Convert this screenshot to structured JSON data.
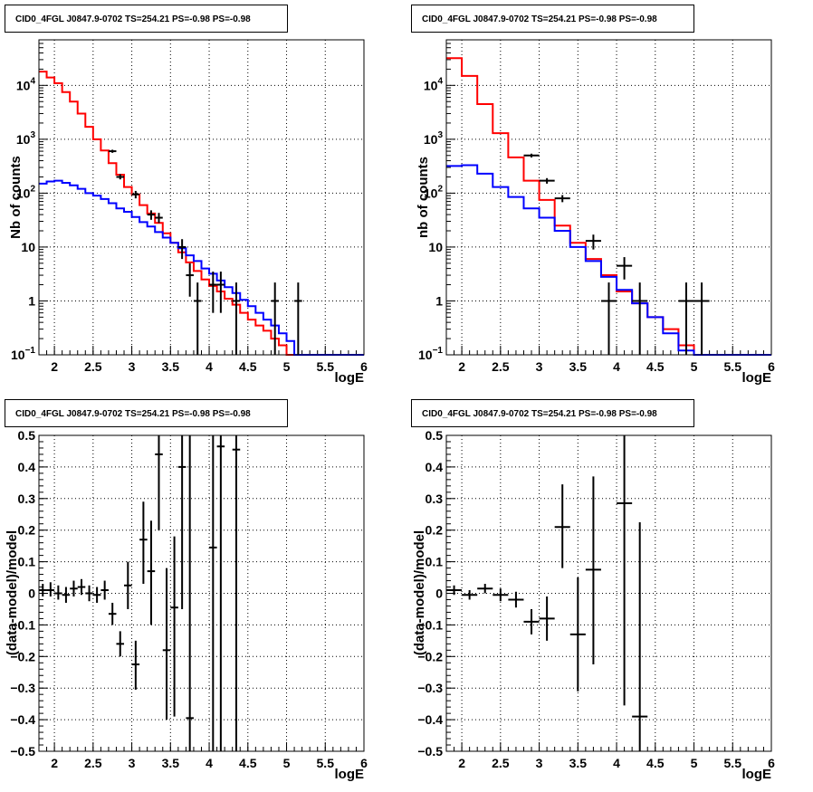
{
  "chart_data": [
    {
      "type": "line",
      "title": "CID0_4FGL J0847.9-0702 TS=254.21 PS=-0.98 PS=-0.98",
      "xlabel": "logE",
      "ylabel": "Nb of counts",
      "yscale": "log",
      "xlim": [
        1.8,
        6.0
      ],
      "ylim": [
        0.1,
        70000
      ],
      "grid": true,
      "xticks": [
        "2",
        "2.5",
        "3",
        "3.5",
        "4",
        "4.5",
        "5",
        "5.5",
        "6"
      ],
      "yticks": [
        {
          "value": 0.1,
          "label": "10",
          "sup": "−1"
        },
        {
          "value": 1,
          "label": "1",
          "sup": ""
        },
        {
          "value": 10,
          "label": "10",
          "sup": ""
        },
        {
          "value": 100,
          "label": "10",
          "sup": "2"
        },
        {
          "value": 1000,
          "label": "10",
          "sup": "3"
        },
        {
          "value": 10000,
          "label": "10",
          "sup": "4"
        }
      ],
      "bin_edges": [
        1.8,
        1.9,
        2.0,
        2.1,
        2.2,
        2.3,
        2.4,
        2.5,
        2.6,
        2.7,
        2.8,
        2.9,
        3.0,
        3.1,
        3.2,
        3.3,
        3.4,
        3.5,
        3.6,
        3.7,
        3.8,
        3.9,
        4.0,
        4.1,
        4.2,
        4.3,
        4.4,
        4.5,
        4.6,
        4.7,
        4.8,
        4.9,
        5.0,
        5.1,
        5.2,
        5.3,
        5.4,
        5.5,
        5.6,
        5.7,
        5.8,
        5.9,
        6.0
      ],
      "series": [
        {
          "color": "#ff0000",
          "style": "step",
          "values": [
            18000,
            14000,
            11000,
            7500,
            5000,
            3000,
            1700,
            1000,
            620,
            360,
            220,
            130,
            95,
            60,
            42,
            28,
            18,
            12,
            8,
            5.2,
            3.6,
            2.5,
            1.9,
            1.5,
            1.1,
            0.85,
            0.6,
            0.45,
            0.35,
            0.28,
            0.2,
            0.15,
            0.1,
            0.1,
            0.1,
            0.1,
            0.1,
            0.1,
            0.1,
            0.1,
            0.1,
            0.1
          ]
        },
        {
          "color": "#0000ff",
          "style": "step",
          "values": [
            150,
            165,
            170,
            155,
            140,
            120,
            100,
            90,
            78,
            65,
            52,
            45,
            36,
            29,
            24,
            19,
            15,
            12,
            9.5,
            7,
            5.5,
            4,
            3.2,
            2.4,
            1.8,
            1.4,
            1.05,
            0.8,
            0.6,
            0.45,
            0.35,
            0.25,
            0.18,
            0.1,
            0.1,
            0.1,
            0.1,
            0.1,
            0.1,
            0.1,
            0.1,
            0.1
          ]
        }
      ],
      "data_points": [
        {
          "x": 2.75,
          "y": 600,
          "ylo": 560,
          "yhi": 640
        },
        {
          "x": 2.85,
          "y": 200,
          "ylo": 180,
          "yhi": 225
        },
        {
          "x": 3.05,
          "y": 95,
          "ylo": 80,
          "yhi": 110
        },
        {
          "x": 3.25,
          "y": 40,
          "ylo": 32,
          "yhi": 48
        },
        {
          "x": 3.35,
          "y": 35,
          "ylo": 28,
          "yhi": 43
        },
        {
          "x": 3.65,
          "y": 10,
          "ylo": 6,
          "yhi": 14
        },
        {
          "x": 3.75,
          "y": 3,
          "ylo": 1.2,
          "yhi": 5
        },
        {
          "x": 3.85,
          "y": 1,
          "ylo": 0.1,
          "yhi": 2.2
        },
        {
          "x": 4.05,
          "y": 2,
          "ylo": 0.6,
          "yhi": 3.5
        },
        {
          "x": 4.15,
          "y": 2,
          "ylo": 0.6,
          "yhi": 3.5
        },
        {
          "x": 4.35,
          "y": 1,
          "ylo": 0.1,
          "yhi": 2.2
        },
        {
          "x": 4.85,
          "y": 1,
          "ylo": 0.1,
          "yhi": 2.2
        },
        {
          "x": 5.15,
          "y": 1,
          "ylo": 0.1,
          "yhi": 2.2
        }
      ]
    },
    {
      "type": "line",
      "title": "CID0_4FGL J0847.9-0702 TS=254.21 PS=-0.98 PS=-0.98",
      "xlabel": "logE",
      "ylabel": "nb of counts",
      "yscale": "log",
      "xlim": [
        1.8,
        6.0
      ],
      "ylim": [
        0.1,
        70000
      ],
      "grid": true,
      "xticks": [
        "2",
        "2.5",
        "3",
        "3.5",
        "4",
        "4.5",
        "5",
        "5.5",
        "6"
      ],
      "yticks": [
        {
          "value": 0.1,
          "label": "10",
          "sup": "−1"
        },
        {
          "value": 1,
          "label": "1",
          "sup": ""
        },
        {
          "value": 10,
          "label": "10",
          "sup": ""
        },
        {
          "value": 100,
          "label": "10",
          "sup": "2"
        },
        {
          "value": 1000,
          "label": "10",
          "sup": "3"
        },
        {
          "value": 10000,
          "label": "10",
          "sup": "4"
        }
      ],
      "bin_edges": [
        1.8,
        2.0,
        2.2,
        2.4,
        2.6,
        2.8,
        3.0,
        3.2,
        3.4,
        3.6,
        3.8,
        4.0,
        4.2,
        4.4,
        4.6,
        4.8,
        5.0,
        5.2,
        5.4,
        5.6,
        5.8,
        6.0
      ],
      "series": [
        {
          "color": "#ff0000",
          "style": "step",
          "values": [
            32000,
            15000,
            4500,
            1300,
            460,
            170,
            75,
            25,
            12,
            6,
            3,
            1.5,
            0.9,
            0.5,
            0.3,
            0.15,
            0.1,
            0.1,
            0.1,
            0.1,
            0.1
          ]
        },
        {
          "color": "#0000ff",
          "style": "step",
          "values": [
            320,
            330,
            230,
            130,
            85,
            52,
            35,
            20,
            10,
            5.5,
            2.8,
            1.6,
            0.9,
            0.5,
            0.25,
            0.12,
            0.1,
            0.1,
            0.1,
            0.1,
            0.1
          ]
        }
      ],
      "data_points": [
        {
          "x": 2.9,
          "y": 500,
          "ylo": 460,
          "yhi": 540
        },
        {
          "x": 3.1,
          "y": 170,
          "ylo": 150,
          "yhi": 190
        },
        {
          "x": 3.3,
          "y": 80,
          "ylo": 68,
          "yhi": 92
        },
        {
          "x": 3.7,
          "y": 13,
          "ylo": 9,
          "yhi": 17
        },
        {
          "x": 3.9,
          "y": 1,
          "ylo": 0.1,
          "yhi": 2.2
        },
        {
          "x": 4.1,
          "y": 4.5,
          "ylo": 2.5,
          "yhi": 6.5
        },
        {
          "x": 4.3,
          "y": 1,
          "ylo": 0.1,
          "yhi": 2.2
        },
        {
          "x": 4.9,
          "y": 1,
          "ylo": 0.1,
          "yhi": 2.2
        },
        {
          "x": 5.1,
          "y": 1,
          "ylo": 0.1,
          "yhi": 2.2
        }
      ]
    },
    {
      "type": "scatter",
      "title": "CID0_4FGL J0847.9-0702 TS=254.21 PS=-0.98 PS=-0.98",
      "xlabel": "logE",
      "ylabel": "(data-model)/model",
      "yscale": "linear",
      "xlim": [
        1.8,
        6.0
      ],
      "ylim": [
        -0.5,
        0.5
      ],
      "grid": true,
      "xticks": [
        "2",
        "2.5",
        "3",
        "3.5",
        "4",
        "4.5",
        "5",
        "5.5",
        "6"
      ],
      "yticks": [
        {
          "value": -0.5,
          "label": "−0.5"
        },
        {
          "value": -0.4,
          "label": "−0.4"
        },
        {
          "value": -0.3,
          "label": "−0.3"
        },
        {
          "value": -0.2,
          "label": "−0.2"
        },
        {
          "value": -0.1,
          "label": "−0.1"
        },
        {
          "value": 0,
          "label": "0"
        },
        {
          "value": 0.1,
          "label": "0.1"
        },
        {
          "value": 0.2,
          "label": "0.2"
        },
        {
          "value": 0.3,
          "label": "0.3"
        },
        {
          "value": 0.4,
          "label": "0.4"
        },
        {
          "value": 0.5,
          "label": "0.5"
        }
      ],
      "xerr": 0.05,
      "data_points": [
        {
          "x": 1.85,
          "y": 0.01,
          "ylo": -0.01,
          "yhi": 0.03
        },
        {
          "x": 1.95,
          "y": 0.01,
          "ylo": -0.01,
          "yhi": 0.035
        },
        {
          "x": 2.05,
          "y": 0.0,
          "ylo": -0.02,
          "yhi": 0.025
        },
        {
          "x": 2.15,
          "y": -0.005,
          "ylo": -0.03,
          "yhi": 0.02
        },
        {
          "x": 2.25,
          "y": 0.015,
          "ylo": -0.01,
          "yhi": 0.04
        },
        {
          "x": 2.35,
          "y": 0.02,
          "ylo": -0.005,
          "yhi": 0.045
        },
        {
          "x": 2.45,
          "y": 0.0,
          "ylo": -0.025,
          "yhi": 0.025
        },
        {
          "x": 2.55,
          "y": -0.005,
          "ylo": -0.03,
          "yhi": 0.02
        },
        {
          "x": 2.65,
          "y": 0.01,
          "ylo": -0.02,
          "yhi": 0.04
        },
        {
          "x": 2.75,
          "y": -0.065,
          "ylo": -0.1,
          "yhi": -0.03
        },
        {
          "x": 2.85,
          "y": -0.16,
          "ylo": -0.2,
          "yhi": -0.12
        },
        {
          "x": 2.95,
          "y": 0.025,
          "ylo": -0.05,
          "yhi": 0.1
        },
        {
          "x": 3.05,
          "y": -0.225,
          "ylo": -0.305,
          "yhi": -0.15
        },
        {
          "x": 3.15,
          "y": 0.17,
          "ylo": 0.03,
          "yhi": 0.29
        },
        {
          "x": 3.25,
          "y": 0.07,
          "ylo": -0.1,
          "yhi": 0.23
        },
        {
          "x": 3.35,
          "y": 0.44,
          "ylo": 0.2,
          "yhi": 0.5
        },
        {
          "x": 3.45,
          "y": -0.18,
          "ylo": -0.4,
          "yhi": 0.08
        },
        {
          "x": 3.55,
          "y": -0.045,
          "ylo": -0.39,
          "yhi": 0.18
        },
        {
          "x": 3.65,
          "y": 0.4,
          "ylo": -0.05,
          "yhi": 0.5
        },
        {
          "x": 3.75,
          "y": -0.395,
          "ylo": -0.5,
          "yhi": 0.5
        },
        {
          "x": 4.05,
          "y": 0.145,
          "ylo": -0.5,
          "yhi": 0.5
        },
        {
          "x": 4.15,
          "y": 0.465,
          "ylo": -0.5,
          "yhi": 0.5
        },
        {
          "x": 4.35,
          "y": 0.455,
          "ylo": -0.5,
          "yhi": 0.5
        }
      ]
    },
    {
      "type": "scatter",
      "title": "CID0_4FGL J0847.9-0702 TS=254.21 PS=-0.98 PS=-0.98",
      "xlabel": "logE",
      "ylabel": "(data-model)/model",
      "yscale": "linear",
      "xlim": [
        1.8,
        6.0
      ],
      "ylim": [
        -0.5,
        0.5
      ],
      "grid": true,
      "xticks": [
        "2",
        "2.5",
        "3",
        "3.5",
        "4",
        "4.5",
        "5",
        "5.5",
        "6"
      ],
      "yticks": [
        {
          "value": -0.5,
          "label": "−0.5"
        },
        {
          "value": -0.4,
          "label": "−0.4"
        },
        {
          "value": -0.3,
          "label": "−0.3"
        },
        {
          "value": -0.2,
          "label": "−0.2"
        },
        {
          "value": -0.1,
          "label": "−0.1"
        },
        {
          "value": 0,
          "label": "0"
        },
        {
          "value": 0.1,
          "label": "0.1"
        },
        {
          "value": 0.2,
          "label": "0.2"
        },
        {
          "value": 0.3,
          "label": "0.3"
        },
        {
          "value": 0.4,
          "label": "0.4"
        },
        {
          "value": 0.5,
          "label": "0.5"
        }
      ],
      "xerr": 0.1,
      "data_points": [
        {
          "x": 1.9,
          "y": 0.01,
          "ylo": -0.005,
          "yhi": 0.025
        },
        {
          "x": 2.1,
          "y": -0.005,
          "ylo": -0.02,
          "yhi": 0.01
        },
        {
          "x": 2.3,
          "y": 0.015,
          "ylo": 0.0,
          "yhi": 0.03
        },
        {
          "x": 2.5,
          "y": -0.005,
          "ylo": -0.025,
          "yhi": 0.015
        },
        {
          "x": 2.7,
          "y": -0.02,
          "ylo": -0.045,
          "yhi": 0.005
        },
        {
          "x": 2.9,
          "y": -0.09,
          "ylo": -0.13,
          "yhi": -0.05
        },
        {
          "x": 3.1,
          "y": -0.08,
          "ylo": -0.15,
          "yhi": -0.01
        },
        {
          "x": 3.3,
          "y": 0.21,
          "ylo": 0.08,
          "yhi": 0.345
        },
        {
          "x": 3.5,
          "y": -0.13,
          "ylo": -0.31,
          "yhi": 0.05
        },
        {
          "x": 3.7,
          "y": 0.075,
          "ylo": -0.225,
          "yhi": 0.37
        },
        {
          "x": 4.1,
          "y": 0.285,
          "ylo": -0.355,
          "yhi": 0.5
        },
        {
          "x": 4.3,
          "y": -0.39,
          "ylo": -0.5,
          "yhi": 0.225
        }
      ]
    }
  ]
}
